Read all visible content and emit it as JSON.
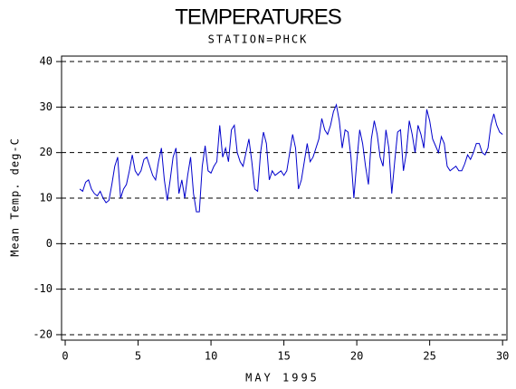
{
  "chart_data": {
    "type": "line",
    "title": "TEMPERATURES",
    "subtitle": "STATION=PHCK",
    "x_label": "MAY 1995",
    "y_label": "Mean Temp. deg-C",
    "x": [
      1.0,
      1.2,
      1.4,
      1.6,
      1.8,
      2.0,
      2.2,
      2.4,
      2.6,
      2.8,
      3.0,
      3.2,
      3.4,
      3.6,
      3.8,
      4.0,
      4.2,
      4.4,
      4.6,
      4.8,
      5.0,
      5.2,
      5.4,
      5.6,
      5.8,
      6.0,
      6.2,
      6.4,
      6.6,
      6.8,
      7.0,
      7.2,
      7.4,
      7.6,
      7.8,
      8.0,
      8.2,
      8.4,
      8.6,
      8.8,
      9.0,
      9.2,
      9.4,
      9.6,
      9.8,
      10.0,
      10.2,
      10.4,
      10.6,
      10.8,
      11.0,
      11.2,
      11.4,
      11.6,
      11.8,
      12.0,
      12.2,
      12.4,
      12.6,
      12.8,
      13.0,
      13.2,
      13.4,
      13.6,
      13.8,
      14.0,
      14.2,
      14.4,
      14.6,
      14.8,
      15.0,
      15.2,
      15.4,
      15.6,
      15.8,
      16.0,
      16.2,
      16.4,
      16.6,
      16.8,
      17.0,
      17.2,
      17.4,
      17.6,
      17.8,
      18.0,
      18.2,
      18.4,
      18.6,
      18.8,
      19.0,
      19.2,
      19.4,
      19.6,
      19.8,
      20.0,
      20.2,
      20.4,
      20.6,
      20.8,
      21.0,
      21.2,
      21.4,
      21.6,
      21.8,
      22.0,
      22.2,
      22.4,
      22.6,
      22.8,
      23.0,
      23.2,
      23.4,
      23.6,
      23.8,
      24.0,
      24.2,
      24.4,
      24.6,
      24.8,
      25.0,
      25.2,
      25.4,
      25.6,
      25.8,
      26.0,
      26.2,
      26.4,
      26.6,
      26.8,
      27.0,
      27.2,
      27.4,
      27.6,
      27.8,
      28.0,
      28.2,
      28.4,
      28.6,
      28.8,
      29.0,
      29.2,
      29.4,
      29.6,
      29.8,
      30.0
    ],
    "series": [
      {
        "color": "#0000cc",
        "values": [
          12,
          11.5,
          13.5,
          14,
          12,
          11,
          10.5,
          11.5,
          10,
          9,
          9.5,
          13,
          17,
          19,
          10,
          12,
          13,
          16,
          19.5,
          16,
          15,
          16,
          18.5,
          19,
          17,
          15,
          14,
          18,
          21,
          14,
          9.5,
          14,
          19,
          21,
          11,
          14,
          10,
          15,
          19,
          11,
          7,
          7,
          17,
          21.5,
          16,
          15.5,
          17,
          18,
          26,
          19,
          21,
          18,
          25,
          26,
          20,
          18,
          17,
          20,
          23,
          18,
          12,
          11.5,
          20,
          24.5,
          22,
          14,
          16,
          15,
          15.5,
          16,
          15,
          16,
          20,
          24,
          21,
          12,
          14,
          18,
          22,
          18,
          19,
          21,
          23,
          27.5,
          25,
          24,
          26,
          29,
          30.5,
          27,
          21,
          25,
          24.5,
          19,
          10,
          18,
          25,
          22,
          17,
          13,
          23,
          27,
          24,
          19,
          17,
          25,
          21,
          11,
          18,
          24.5,
          25,
          16,
          20,
          27,
          24,
          20,
          26,
          24,
          21,
          29.5,
          27,
          23,
          21.5,
          20,
          23.5,
          22,
          17,
          16,
          16.5,
          17,
          16,
          16,
          17.5,
          19.5,
          18.5,
          20,
          22,
          22,
          20,
          19.5,
          21,
          26,
          28.5,
          26,
          24.5,
          24
        ]
      }
    ],
    "xlim": [
      -0.25,
      30.3
    ],
    "xticks": [
      0,
      5,
      10,
      15,
      20,
      25,
      30
    ],
    "ylim": [
      -21.2,
      41.2
    ],
    "yticks": [
      40,
      30,
      20,
      10,
      0,
      -10,
      -20
    ],
    "grid": true
  }
}
